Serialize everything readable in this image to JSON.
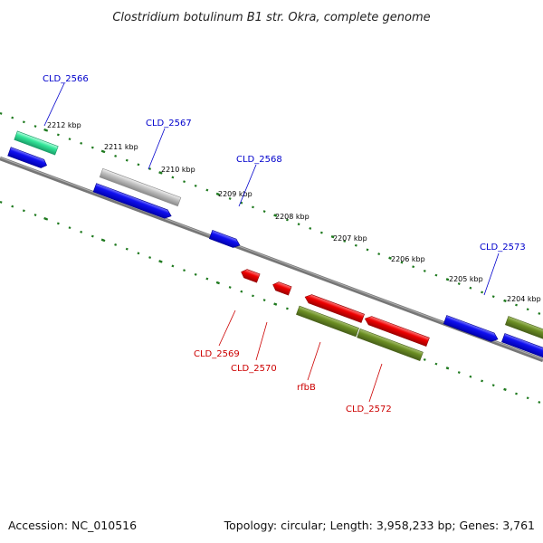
{
  "title": "Clostridium botulinum B1 str. Okra, complete genome",
  "footer": {
    "accession": "Accession: NC_010516",
    "summary": "Topology: circular; Length: 3,958,233 bp; Genes: 3,761"
  },
  "colors": {
    "background": "#ffffff",
    "backbone": "#808080",
    "ticks": "#1f7a1f",
    "gene_blue": "#0000e6",
    "gene_cyan": "#33e699",
    "gene_gray": "#bdbdbd",
    "gene_red": "#ee0000",
    "gene_olive": "#6b8e23",
    "label_blue": "#0000cc",
    "label_red": "#cc0000"
  },
  "ticks": [
    "2212 kbp",
    "2211 kbp",
    "2210 kbp",
    "2209 kbp",
    "2208 kbp",
    "2207 kbp",
    "2206 kbp",
    "2205 kbp",
    "2204 kbp"
  ],
  "gene_labels": [
    "CLD_2566",
    "CLD_2567",
    "CLD_2568",
    "CLD_2573",
    "CLD_2569",
    "CLD_2570",
    "rfbB",
    "CLD_2572"
  ]
}
